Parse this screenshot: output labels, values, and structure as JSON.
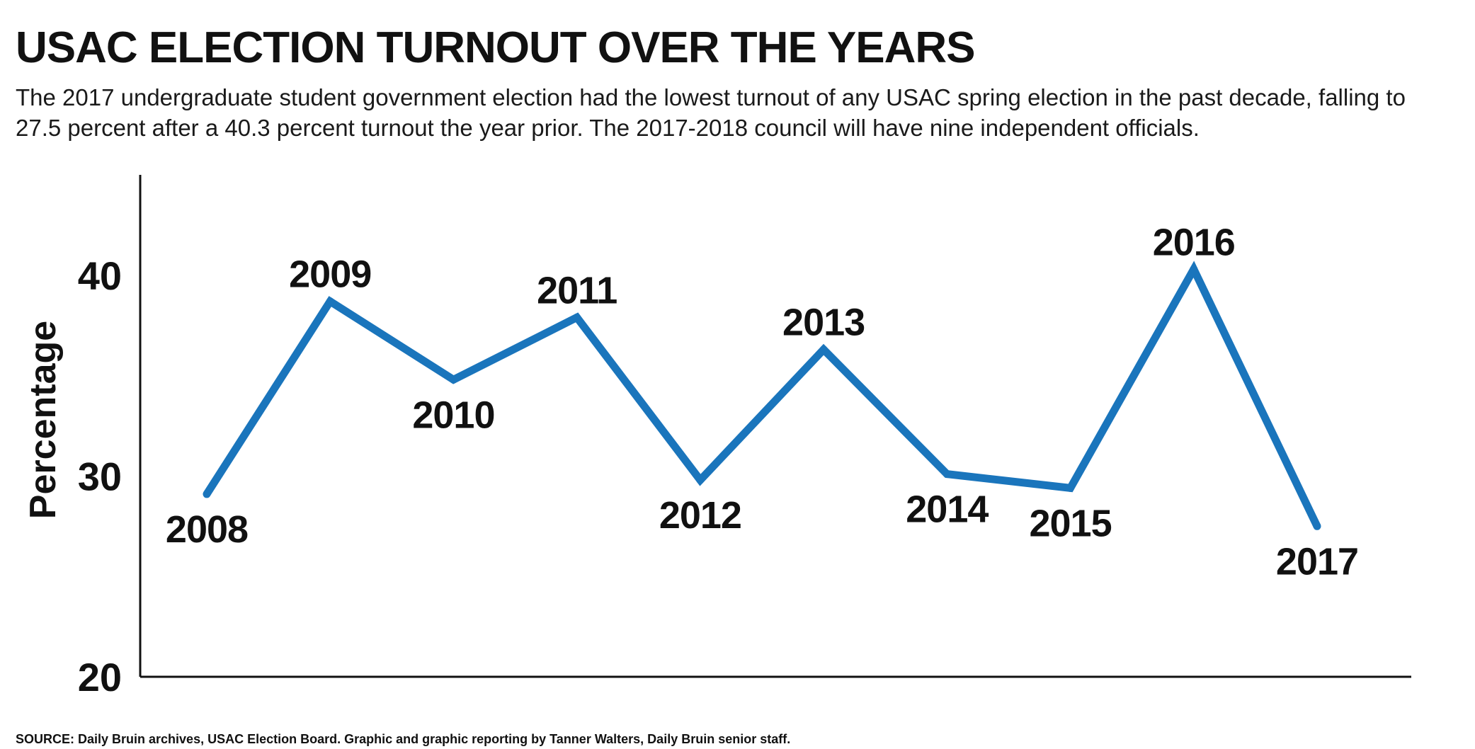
{
  "chart_data": {
    "type": "line",
    "title": "USAC ELECTION TURNOUT OVER THE YEARS",
    "subtitle": [
      "The 2017 undergraduate student government election had the lowest turnout of any USAC spring election in the past decade, falling to",
      "27.5 percent after a 40.3 percent turnout the year prior. The 2017-2018 council will have nine independent officials."
    ],
    "ylabel": "Percentage",
    "xlabel": "",
    "ylim": [
      20,
      45
    ],
    "yticks": [
      20,
      30,
      40
    ],
    "grid": false,
    "line_color": "#1a75bc",
    "x": [
      "2008",
      "2009",
      "2010",
      "2011",
      "2012",
      "2013",
      "2014",
      "2015",
      "2016",
      "2017"
    ],
    "values": [
      29.1,
      38.7,
      34.8,
      37.9,
      29.8,
      36.3,
      30.1,
      29.4,
      40.3,
      27.5
    ],
    "label_positions": [
      "below",
      "above",
      "below",
      "above",
      "below",
      "above",
      "below",
      "below",
      "above",
      "below"
    ],
    "source": "SOURCE: Daily Bruin archives, USAC Election Board. Graphic and graphic reporting by Tanner Walters, Daily Bruin senior staff."
  }
}
